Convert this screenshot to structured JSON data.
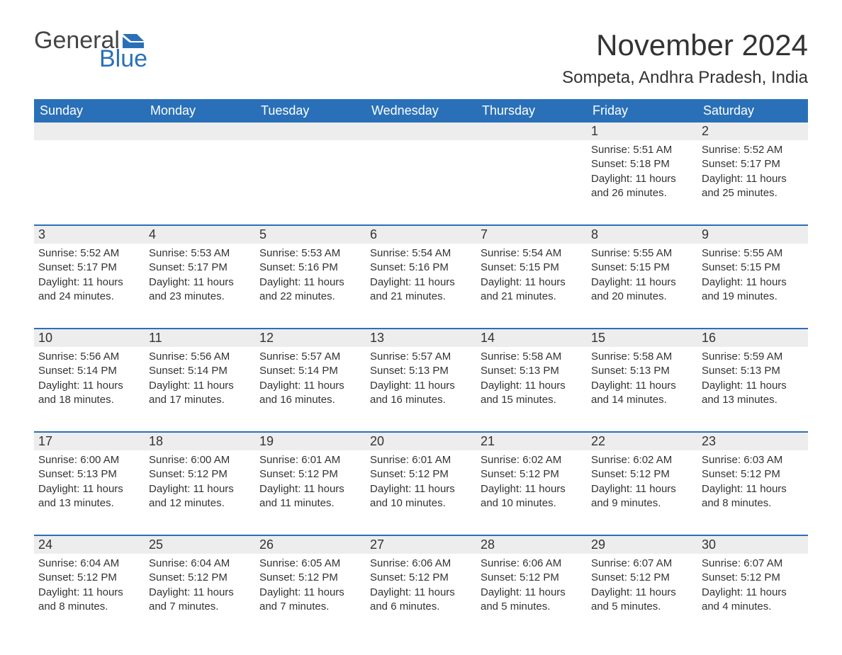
{
  "logo": {
    "text1": "General",
    "text2": "Blue",
    "flag_color": "#2a70b8",
    "text1_color": "#444444"
  },
  "title": "November 2024",
  "location": "Sompeta, Andhra Pradesh, India",
  "colors": {
    "header_bg": "#2a70b8",
    "header_text": "#ffffff",
    "daynum_bg": "#ededed",
    "body_text": "#333333",
    "row_border": "#2a70b8",
    "page_bg": "#ffffff"
  },
  "fonts": {
    "title_size_pt": 32,
    "location_size_pt": 18,
    "header_size_pt": 14,
    "body_size_pt": 11
  },
  "day_names": [
    "Sunday",
    "Monday",
    "Tuesday",
    "Wednesday",
    "Thursday",
    "Friday",
    "Saturday"
  ],
  "weeks": [
    [
      null,
      null,
      null,
      null,
      null,
      {
        "n": "1",
        "sr": "5:51 AM",
        "ss": "5:18 PM",
        "dl": "11 hours and 26 minutes."
      },
      {
        "n": "2",
        "sr": "5:52 AM",
        "ss": "5:17 PM",
        "dl": "11 hours and 25 minutes."
      }
    ],
    [
      {
        "n": "3",
        "sr": "5:52 AM",
        "ss": "5:17 PM",
        "dl": "11 hours and 24 minutes."
      },
      {
        "n": "4",
        "sr": "5:53 AM",
        "ss": "5:17 PM",
        "dl": "11 hours and 23 minutes."
      },
      {
        "n": "5",
        "sr": "5:53 AM",
        "ss": "5:16 PM",
        "dl": "11 hours and 22 minutes."
      },
      {
        "n": "6",
        "sr": "5:54 AM",
        "ss": "5:16 PM",
        "dl": "11 hours and 21 minutes."
      },
      {
        "n": "7",
        "sr": "5:54 AM",
        "ss": "5:15 PM",
        "dl": "11 hours and 21 minutes."
      },
      {
        "n": "8",
        "sr": "5:55 AM",
        "ss": "5:15 PM",
        "dl": "11 hours and 20 minutes."
      },
      {
        "n": "9",
        "sr": "5:55 AM",
        "ss": "5:15 PM",
        "dl": "11 hours and 19 minutes."
      }
    ],
    [
      {
        "n": "10",
        "sr": "5:56 AM",
        "ss": "5:14 PM",
        "dl": "11 hours and 18 minutes."
      },
      {
        "n": "11",
        "sr": "5:56 AM",
        "ss": "5:14 PM",
        "dl": "11 hours and 17 minutes."
      },
      {
        "n": "12",
        "sr": "5:57 AM",
        "ss": "5:14 PM",
        "dl": "11 hours and 16 minutes."
      },
      {
        "n": "13",
        "sr": "5:57 AM",
        "ss": "5:13 PM",
        "dl": "11 hours and 16 minutes."
      },
      {
        "n": "14",
        "sr": "5:58 AM",
        "ss": "5:13 PM",
        "dl": "11 hours and 15 minutes."
      },
      {
        "n": "15",
        "sr": "5:58 AM",
        "ss": "5:13 PM",
        "dl": "11 hours and 14 minutes."
      },
      {
        "n": "16",
        "sr": "5:59 AM",
        "ss": "5:13 PM",
        "dl": "11 hours and 13 minutes."
      }
    ],
    [
      {
        "n": "17",
        "sr": "6:00 AM",
        "ss": "5:13 PM",
        "dl": "11 hours and 13 minutes."
      },
      {
        "n": "18",
        "sr": "6:00 AM",
        "ss": "5:12 PM",
        "dl": "11 hours and 12 minutes."
      },
      {
        "n": "19",
        "sr": "6:01 AM",
        "ss": "5:12 PM",
        "dl": "11 hours and 11 minutes."
      },
      {
        "n": "20",
        "sr": "6:01 AM",
        "ss": "5:12 PM",
        "dl": "11 hours and 10 minutes."
      },
      {
        "n": "21",
        "sr": "6:02 AM",
        "ss": "5:12 PM",
        "dl": "11 hours and 10 minutes."
      },
      {
        "n": "22",
        "sr": "6:02 AM",
        "ss": "5:12 PM",
        "dl": "11 hours and 9 minutes."
      },
      {
        "n": "23",
        "sr": "6:03 AM",
        "ss": "5:12 PM",
        "dl": "11 hours and 8 minutes."
      }
    ],
    [
      {
        "n": "24",
        "sr": "6:04 AM",
        "ss": "5:12 PM",
        "dl": "11 hours and 8 minutes."
      },
      {
        "n": "25",
        "sr": "6:04 AM",
        "ss": "5:12 PM",
        "dl": "11 hours and 7 minutes."
      },
      {
        "n": "26",
        "sr": "6:05 AM",
        "ss": "5:12 PM",
        "dl": "11 hours and 7 minutes."
      },
      {
        "n": "27",
        "sr": "6:06 AM",
        "ss": "5:12 PM",
        "dl": "11 hours and 6 minutes."
      },
      {
        "n": "28",
        "sr": "6:06 AM",
        "ss": "5:12 PM",
        "dl": "11 hours and 5 minutes."
      },
      {
        "n": "29",
        "sr": "6:07 AM",
        "ss": "5:12 PM",
        "dl": "11 hours and 5 minutes."
      },
      {
        "n": "30",
        "sr": "6:07 AM",
        "ss": "5:12 PM",
        "dl": "11 hours and 4 minutes."
      }
    ]
  ],
  "labels": {
    "sunrise": "Sunrise:",
    "sunset": "Sunset:",
    "daylight": "Daylight:"
  }
}
